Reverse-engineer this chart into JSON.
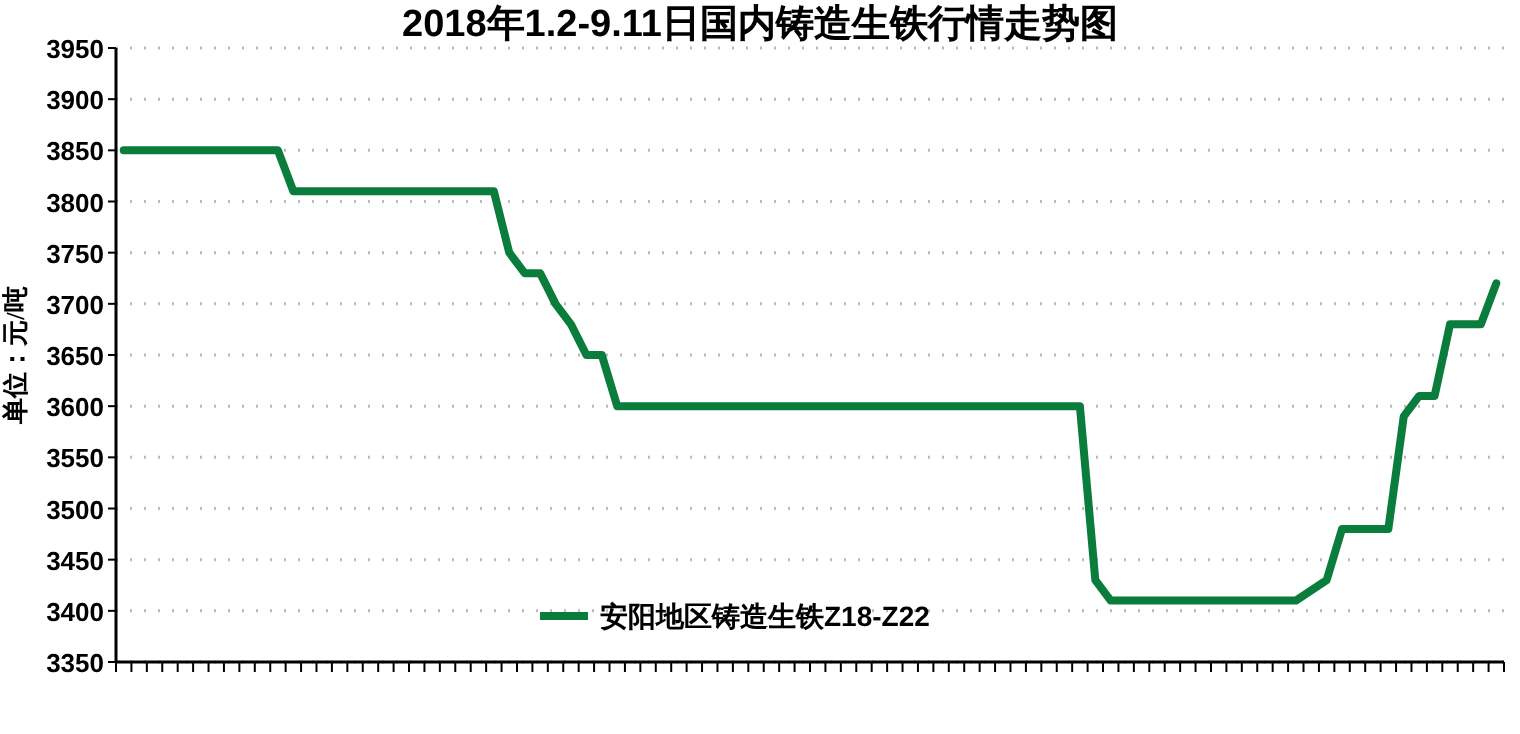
{
  "chart_data": {
    "type": "line",
    "title": "2018年1.2-9.11日国内铸造生铁行情走势图",
    "ylabel": "单位：元/吨",
    "categories": [
      null,
      null,
      null,
      null,
      null,
      null,
      null,
      null,
      null,
      null,
      null,
      null,
      null,
      null,
      null,
      null,
      null,
      null,
      null,
      null,
      null,
      null,
      null,
      null,
      null,
      null,
      null,
      null,
      null,
      null,
      null,
      null,
      null,
      null,
      null,
      null,
      null,
      null,
      null,
      null,
      null,
      null,
      null,
      null,
      null,
      null,
      null,
      null,
      null,
      null,
      null,
      null,
      null,
      null,
      null,
      null,
      null,
      null,
      null,
      null,
      null,
      null,
      null,
      null,
      null,
      null,
      null,
      null,
      null,
      null,
      null,
      null,
      null,
      null,
      null,
      null,
      null,
      null,
      null,
      null,
      null,
      null,
      null,
      null,
      null,
      null,
      null,
      null,
      null,
      null
    ],
    "series": [
      {
        "name": "安阳地区铸造生铁Z18-Z22",
        "color": "#0a7d3c",
        "values": [
          3850,
          3850,
          3850,
          3850,
          3850,
          3850,
          3850,
          3850,
          3850,
          3850,
          3850,
          3810,
          3810,
          3810,
          3810,
          3810,
          3810,
          3810,
          3810,
          3810,
          3810,
          3810,
          3810,
          3810,
          3810,
          3750,
          3730,
          3730,
          3700,
          3680,
          3650,
          3650,
          3600,
          3600,
          3600,
          3600,
          3600,
          3600,
          3600,
          3600,
          3600,
          3600,
          3600,
          3600,
          3600,
          3600,
          3600,
          3600,
          3600,
          3600,
          3600,
          3600,
          3600,
          3600,
          3600,
          3600,
          3600,
          3600,
          3600,
          3600,
          3600,
          3600,
          3600,
          3430,
          3410,
          3410,
          3410,
          3410,
          3410,
          3410,
          3410,
          3410,
          3410,
          3410,
          3410,
          3410,
          3410,
          3420,
          3430,
          3480,
          3480,
          3480,
          3480,
          3590,
          3610,
          3610,
          3680,
          3680,
          3680,
          3720
        ]
      }
    ],
    "ylim": [
      3350,
      3950
    ],
    "yticks": [
      3350,
      3400,
      3450,
      3500,
      3550,
      3600,
      3650,
      3700,
      3750,
      3800,
      3850,
      3900,
      3950
    ],
    "grid": "y",
    "legend": "bottom",
    "tick_labels": "y",
    "marker": "none",
    "line_style": "solid"
  }
}
